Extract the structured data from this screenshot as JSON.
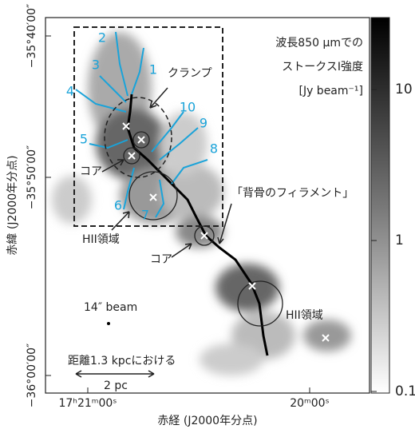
{
  "axes": {
    "x_label": "赤経 (J2000年分点)",
    "y_label": "赤緯 (J2000年分点)",
    "x_ticks": [
      "17ʰ21ᵐ00ˢ",
      "20ᵐ00ˢ"
    ],
    "y_ticks": [
      "−35°40′00″",
      "−35°50′00″",
      "−36°00′00″"
    ]
  },
  "colorbar": {
    "title": [
      "波長850 μmでの",
      "ストークスI強度",
      "[Jy beam⁻¹]"
    ],
    "range": [
      0.1,
      30
    ],
    "ticks": [
      10,
      1,
      0.1
    ],
    "log": true
  },
  "branch_labels": [
    "1",
    "2",
    "3",
    "4",
    "5",
    "6",
    "7",
    "8",
    "9",
    "10"
  ],
  "annotations": {
    "clump": "クランプ",
    "core_1": "コア",
    "core_2": "コア",
    "spine": "「背骨のフィラメント」",
    "hii_1": "HII領域",
    "hii_2": "HII領域",
    "beam": "14″ beam",
    "scale_note": "距離1.3 kpcにおける",
    "scale": "2 pc"
  }
}
